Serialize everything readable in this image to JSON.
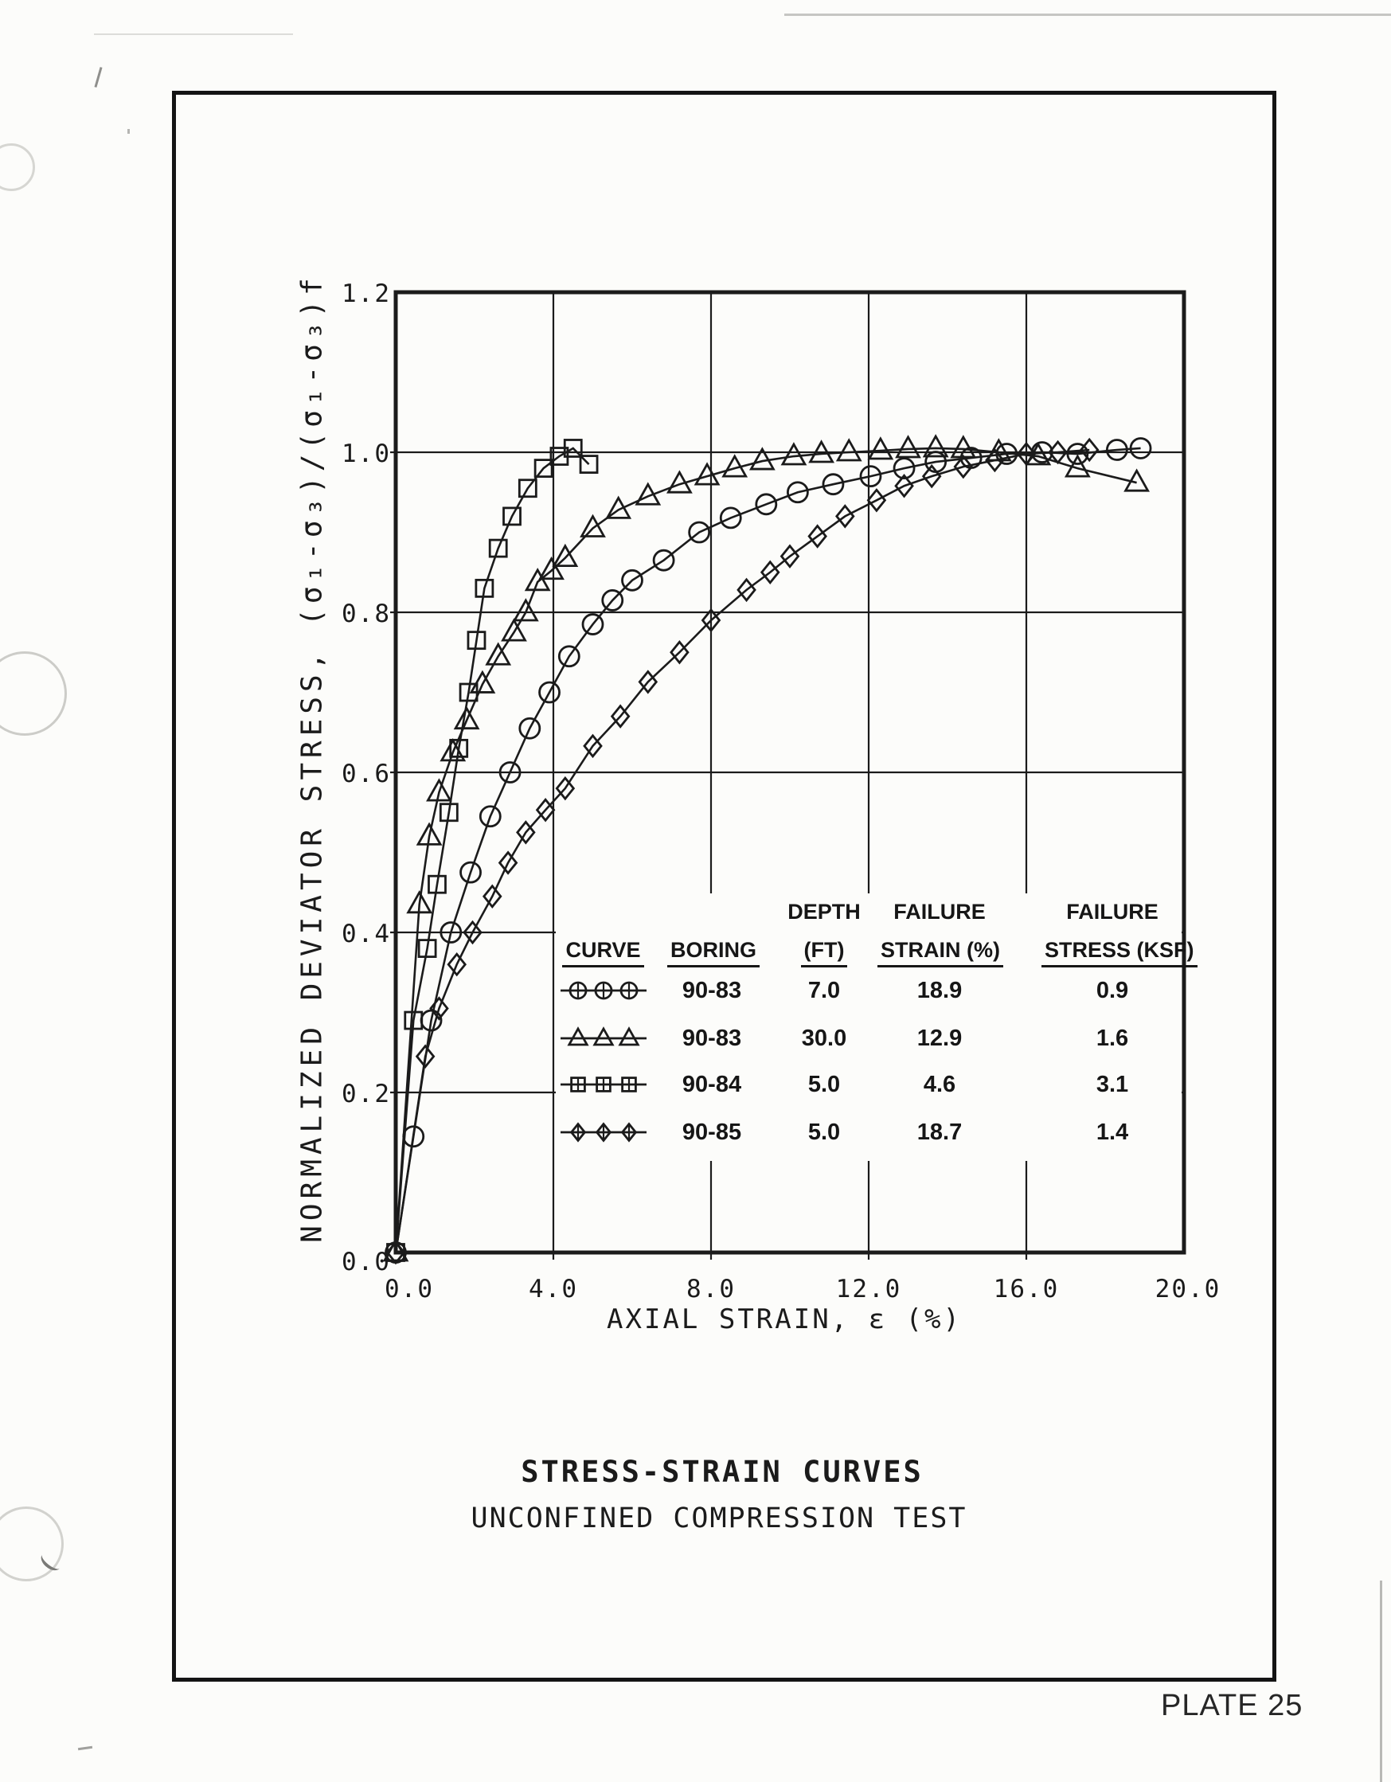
{
  "page": {
    "plate_label": "PLATE 25"
  },
  "chart_data": {
    "type": "line",
    "title": "STRESS-STRAIN CURVES",
    "subtitle": "UNCONFINED COMPRESSION TEST",
    "xlabel": "AXIAL STRAIN, ε (%)",
    "ylabel": "NORMALIZED DEVIATOR STRESS, (σ₁-σ₃)/(σ₁-σ₃)f",
    "xlim": [
      0,
      20
    ],
    "ylim": [
      0,
      1.2
    ],
    "x_ticks": [
      "0.0",
      "4.0",
      "8.0",
      "12.0",
      "16.0",
      "20.0"
    ],
    "y_ticks": [
      "1.2",
      "1.0",
      "0.8",
      "0.6",
      "0.4",
      "0.2",
      "0.0"
    ],
    "grid": true,
    "legend_position": "inside lower right",
    "series": [
      {
        "name": "Boring 90-83 (7.0 ft)",
        "marker": "circle",
        "points": [
          [
            0,
            0
          ],
          [
            0.45,
            0.145
          ],
          [
            0.9,
            0.29
          ],
          [
            1.4,
            0.4
          ],
          [
            1.9,
            0.475
          ],
          [
            2.4,
            0.545
          ],
          [
            2.9,
            0.6
          ],
          [
            3.4,
            0.655
          ],
          [
            3.9,
            0.7
          ],
          [
            4.4,
            0.745
          ],
          [
            5.0,
            0.785
          ],
          [
            5.5,
            0.815
          ],
          [
            6.0,
            0.84
          ],
          [
            6.8,
            0.865
          ],
          [
            7.7,
            0.9
          ],
          [
            8.5,
            0.918
          ],
          [
            9.4,
            0.935
          ],
          [
            10.2,
            0.95
          ],
          [
            11.1,
            0.96
          ],
          [
            12.05,
            0.97
          ],
          [
            12.9,
            0.98
          ],
          [
            13.7,
            0.988
          ],
          [
            14.6,
            0.993
          ],
          [
            15.5,
            0.998
          ],
          [
            16.4,
            1.0
          ],
          [
            17.3,
            0.998
          ],
          [
            18.3,
            1.003
          ],
          [
            18.9,
            1.005
          ]
        ]
      },
      {
        "name": "Boring 90-83 (30.0 ft)",
        "marker": "triangle",
        "points": [
          [
            0,
            0
          ],
          [
            0.6,
            0.435
          ],
          [
            0.85,
            0.52
          ],
          [
            1.1,
            0.575
          ],
          [
            1.45,
            0.625
          ],
          [
            1.8,
            0.665
          ],
          [
            2.2,
            0.71
          ],
          [
            2.6,
            0.745
          ],
          [
            3.0,
            0.775
          ],
          [
            3.3,
            0.8
          ],
          [
            3.6,
            0.838
          ],
          [
            3.95,
            0.852
          ],
          [
            4.3,
            0.868
          ],
          [
            5.0,
            0.905
          ],
          [
            5.65,
            0.928
          ],
          [
            6.4,
            0.945
          ],
          [
            7.2,
            0.96
          ],
          [
            7.9,
            0.97
          ],
          [
            8.6,
            0.98
          ],
          [
            9.3,
            0.989
          ],
          [
            10.1,
            0.995
          ],
          [
            10.8,
            0.998
          ],
          [
            11.5,
            1.0
          ],
          [
            12.3,
            1.002
          ],
          [
            13.0,
            1.004
          ],
          [
            13.7,
            1.005
          ],
          [
            14.4,
            1.004
          ],
          [
            15.3,
            1.0
          ],
          [
            16.3,
            0.995
          ],
          [
            17.3,
            0.98
          ],
          [
            18.8,
            0.962
          ]
        ]
      },
      {
        "name": "Boring 90-84 (5.0 ft)",
        "marker": "square",
        "points": [
          [
            0,
            0
          ],
          [
            0.45,
            0.29
          ],
          [
            0.8,
            0.38
          ],
          [
            1.05,
            0.46
          ],
          [
            1.35,
            0.55
          ],
          [
            1.6,
            0.63
          ],
          [
            1.85,
            0.7
          ],
          [
            2.05,
            0.765
          ],
          [
            2.25,
            0.83
          ],
          [
            2.6,
            0.88
          ],
          [
            2.95,
            0.92
          ],
          [
            3.35,
            0.955
          ],
          [
            3.75,
            0.98
          ],
          [
            4.15,
            0.995
          ],
          [
            4.5,
            1.005
          ],
          [
            4.9,
            0.985
          ]
        ]
      },
      {
        "name": "Boring 90-85 (5.0 ft)",
        "marker": "diamond",
        "points": [
          [
            0,
            0
          ],
          [
            0.75,
            0.245
          ],
          [
            1.1,
            0.305
          ],
          [
            1.55,
            0.36
          ],
          [
            1.95,
            0.4
          ],
          [
            2.45,
            0.445
          ],
          [
            2.85,
            0.487
          ],
          [
            3.3,
            0.525
          ],
          [
            3.8,
            0.553
          ],
          [
            4.3,
            0.58
          ],
          [
            5.0,
            0.633
          ],
          [
            5.7,
            0.67
          ],
          [
            6.4,
            0.713
          ],
          [
            7.2,
            0.75
          ],
          [
            8.0,
            0.79
          ],
          [
            8.9,
            0.828
          ],
          [
            9.5,
            0.85
          ],
          [
            10.0,
            0.87
          ],
          [
            10.7,
            0.895
          ],
          [
            11.4,
            0.92
          ],
          [
            12.2,
            0.94
          ],
          [
            12.9,
            0.958
          ],
          [
            13.6,
            0.97
          ],
          [
            14.4,
            0.982
          ],
          [
            15.2,
            0.99
          ],
          [
            16.0,
            0.998
          ],
          [
            16.8,
            1.0
          ],
          [
            17.6,
            1.003
          ]
        ]
      }
    ],
    "legend": {
      "headers_line1": [
        "",
        "",
        "DEPTH",
        "FAILURE",
        "FAILURE"
      ],
      "headers_line2": [
        "CURVE",
        "BORING",
        "(FT)",
        "STRAIN (%)",
        "STRESS (KSF)"
      ],
      "rows": [
        {
          "marker": "circle",
          "boring": "90-83",
          "depth": "7.0",
          "failure_strain": "18.9",
          "failure_stress": "0.9"
        },
        {
          "marker": "triangle",
          "boring": "90-83",
          "depth": "30.0",
          "failure_strain": "12.9",
          "failure_stress": "1.6"
        },
        {
          "marker": "square",
          "boring": "90-84",
          "depth": "5.0",
          "failure_strain": "4.6",
          "failure_stress": "3.1"
        },
        {
          "marker": "diamond",
          "boring": "90-85",
          "depth": "5.0",
          "failure_strain": "18.7",
          "failure_stress": "1.4"
        }
      ]
    }
  }
}
